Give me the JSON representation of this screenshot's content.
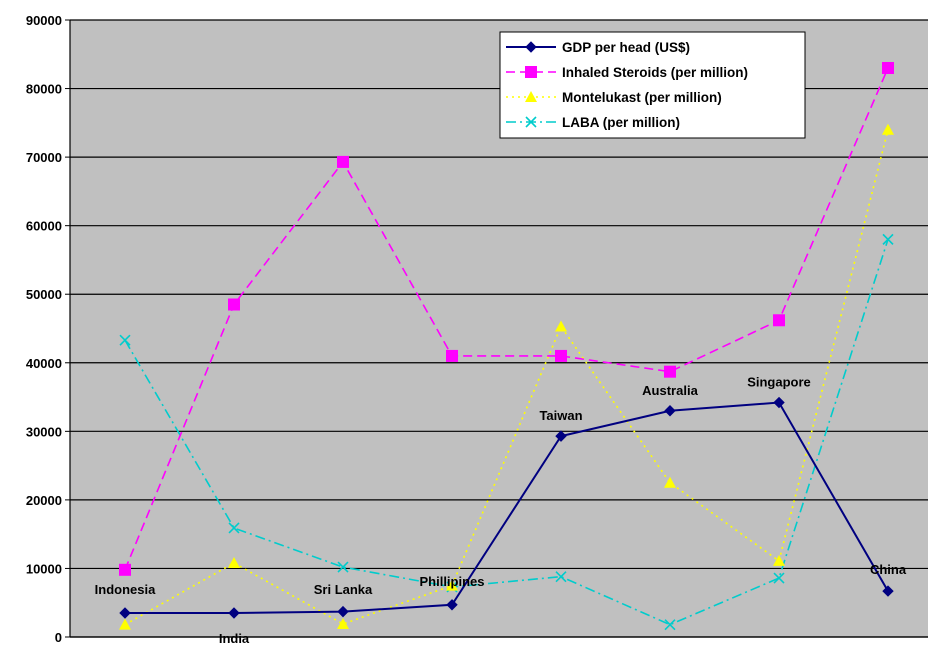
{
  "chart_data": {
    "type": "line",
    "categories": [
      "Indonesia",
      "India",
      "Sri Lanka",
      "Phillipines",
      "Taiwan",
      "Australia",
      "Singapore",
      "China"
    ],
    "ylim": [
      0,
      90000
    ],
    "yticks": [
      "0",
      "10000",
      "20000",
      "30000",
      "40000",
      "50000",
      "60000",
      "70000",
      "80000",
      "90000"
    ],
    "grid": true,
    "legend_position": "top-right",
    "series": [
      {
        "name": "GDP per head (US$)",
        "color": "#000080",
        "marker": "diamond",
        "dash": "solid",
        "values": [
          3500,
          3500,
          3700,
          4700,
          29300,
          33000,
          34200,
          6700
        ]
      },
      {
        "name": "Inhaled Steroids (per million)",
        "color": "#FF00FF",
        "marker": "square",
        "dash": "dashed",
        "values": [
          9800,
          48500,
          69300,
          41000,
          41000,
          38700,
          46200,
          83000
        ]
      },
      {
        "name": "Montelukast (per million)",
        "color": "#FFFF00",
        "marker": "triangle",
        "dash": "dotted",
        "values": [
          1800,
          10800,
          1900,
          7500,
          45300,
          22500,
          11100,
          74000
        ]
      },
      {
        "name": "LABA (per million)",
        "color": "#00CCCC",
        "marker": "cross",
        "dash": "dashdot",
        "values": [
          43300,
          15900,
          10200,
          7300,
          8800,
          1800,
          8600,
          58000
        ]
      }
    ]
  }
}
